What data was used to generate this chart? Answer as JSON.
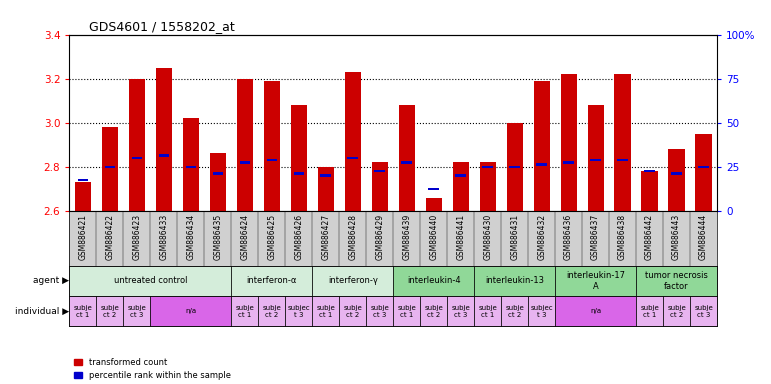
{
  "title": "GDS4601 / 1558202_at",
  "samples": [
    "GSM886421",
    "GSM886422",
    "GSM886423",
    "GSM886433",
    "GSM886434",
    "GSM886435",
    "GSM886424",
    "GSM886425",
    "GSM886426",
    "GSM886427",
    "GSM886428",
    "GSM886429",
    "GSM886439",
    "GSM886440",
    "GSM886441",
    "GSM886430",
    "GSM886431",
    "GSM886432",
    "GSM886436",
    "GSM886437",
    "GSM886438",
    "GSM886442",
    "GSM886443",
    "GSM886444"
  ],
  "red_values": [
    2.73,
    2.98,
    3.2,
    3.25,
    3.02,
    2.86,
    3.2,
    3.19,
    3.08,
    2.8,
    3.23,
    2.82,
    3.08,
    2.66,
    2.82,
    2.82,
    3.0,
    3.19,
    3.22,
    3.08,
    3.22,
    2.78,
    2.88,
    2.95
  ],
  "blue_values": [
    2.74,
    2.8,
    2.84,
    2.85,
    2.8,
    2.77,
    2.82,
    2.83,
    2.77,
    2.76,
    2.84,
    2.78,
    2.82,
    2.7,
    2.76,
    2.8,
    2.8,
    2.81,
    2.82,
    2.83,
    2.83,
    2.78,
    2.77,
    2.8
  ],
  "ylim_left": [
    2.6,
    3.4
  ],
  "ylim_right": [
    0,
    100
  ],
  "yticks_left": [
    2.6,
    2.8,
    3.0,
    3.2,
    3.4
  ],
  "yticks_right": [
    0,
    25,
    50,
    75,
    100
  ],
  "ytick_labels_right": [
    "0",
    "25",
    "50",
    "75",
    "100%"
  ],
  "agent_groups": [
    {
      "label": "untreated control",
      "start": 0,
      "end": 5,
      "color": "#d4edda"
    },
    {
      "label": "interferon-α",
      "start": 6,
      "end": 8,
      "color": "#d4edda"
    },
    {
      "label": "interferon-γ",
      "start": 9,
      "end": 11,
      "color": "#d4edda"
    },
    {
      "label": "interleukin-4",
      "start": 12,
      "end": 14,
      "color": "#90d898"
    },
    {
      "label": "interleukin-13",
      "start": 15,
      "end": 17,
      "color": "#90d898"
    },
    {
      "label": "interleukin-17\nA",
      "start": 18,
      "end": 20,
      "color": "#90d898"
    },
    {
      "label": "tumor necrosis\nfactor",
      "start": 21,
      "end": 23,
      "color": "#90d898"
    }
  ],
  "individual_groups": [
    {
      "label": "subje\nct 1",
      "start": 0,
      "end": 0,
      "color": "#e8b4f0"
    },
    {
      "label": "subje\nct 2",
      "start": 1,
      "end": 1,
      "color": "#e8b4f0"
    },
    {
      "label": "subje\nct 3",
      "start": 2,
      "end": 2,
      "color": "#e8b4f0"
    },
    {
      "label": "n/a",
      "start": 3,
      "end": 5,
      "color": "#d966e8"
    },
    {
      "label": "subje\nct 1",
      "start": 6,
      "end": 6,
      "color": "#e8b4f0"
    },
    {
      "label": "subje\nct 2",
      "start": 7,
      "end": 7,
      "color": "#e8b4f0"
    },
    {
      "label": "subjec\nt 3",
      "start": 8,
      "end": 8,
      "color": "#e8b4f0"
    },
    {
      "label": "subje\nct 1",
      "start": 9,
      "end": 9,
      "color": "#e8b4f0"
    },
    {
      "label": "subje\nct 2",
      "start": 10,
      "end": 10,
      "color": "#e8b4f0"
    },
    {
      "label": "subje\nct 3",
      "start": 11,
      "end": 11,
      "color": "#e8b4f0"
    },
    {
      "label": "subje\nct 1",
      "start": 12,
      "end": 12,
      "color": "#e8b4f0"
    },
    {
      "label": "subje\nct 2",
      "start": 13,
      "end": 13,
      "color": "#e8b4f0"
    },
    {
      "label": "subje\nct 3",
      "start": 14,
      "end": 14,
      "color": "#e8b4f0"
    },
    {
      "label": "subje\nct 1",
      "start": 15,
      "end": 15,
      "color": "#e8b4f0"
    },
    {
      "label": "subje\nct 2",
      "start": 16,
      "end": 16,
      "color": "#e8b4f0"
    },
    {
      "label": "subjec\nt 3",
      "start": 17,
      "end": 17,
      "color": "#e8b4f0"
    },
    {
      "label": "n/a",
      "start": 18,
      "end": 20,
      "color": "#d966e8"
    },
    {
      "label": "subje\nct 1",
      "start": 21,
      "end": 21,
      "color": "#e8b4f0"
    },
    {
      "label": "subje\nct 2",
      "start": 22,
      "end": 22,
      "color": "#e8b4f0"
    },
    {
      "label": "subje\nct 3",
      "start": 23,
      "end": 23,
      "color": "#e8b4f0"
    }
  ],
  "bar_color": "#cc0000",
  "blue_color": "#0000cc",
  "bg_color": "#ffffff",
  "bar_width": 0.6,
  "base_value": 2.6,
  "xtick_bg": "#d0d0d0"
}
